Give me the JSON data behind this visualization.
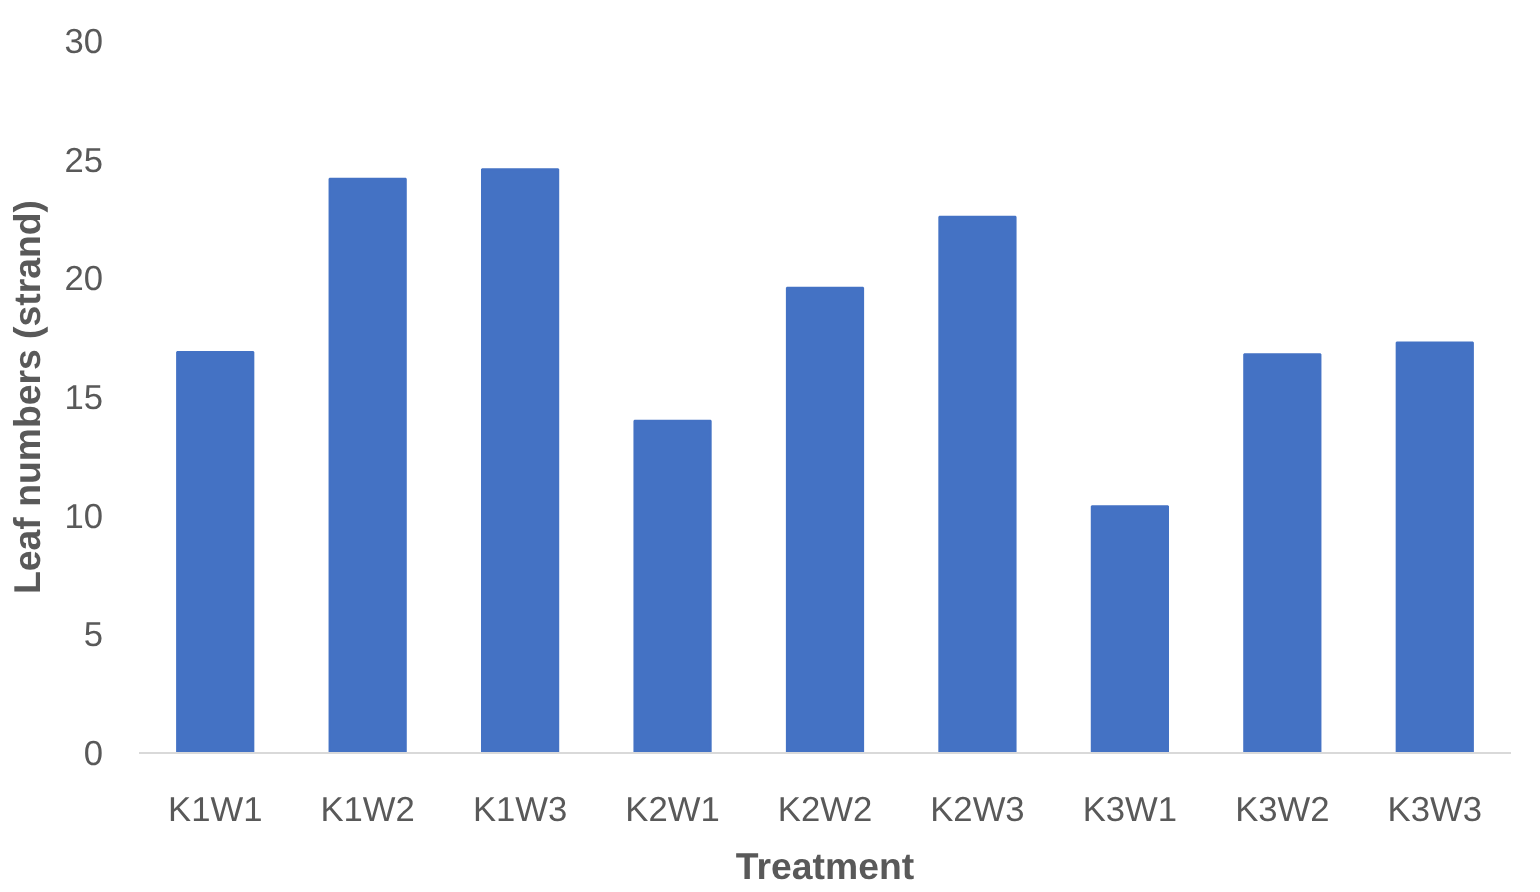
{
  "chart_data": {
    "type": "bar",
    "xlabel": "Treatment",
    "ylabel": "Leaf numbers (strand)",
    "categories": [
      "K1W1",
      "K1W2",
      "K1W3",
      "K2W1",
      "K2W2",
      "K2W3",
      "K3W1",
      "K3W2",
      "K3W3"
    ],
    "values": [
      16.9,
      24.2,
      24.6,
      14.0,
      19.6,
      22.6,
      10.4,
      16.8,
      17.3
    ],
    "color": "#4472c4",
    "ylim": [
      0,
      30
    ],
    "yticks": [
      0,
      5,
      10,
      15,
      20,
      25,
      30
    ],
    "grid": false
  }
}
